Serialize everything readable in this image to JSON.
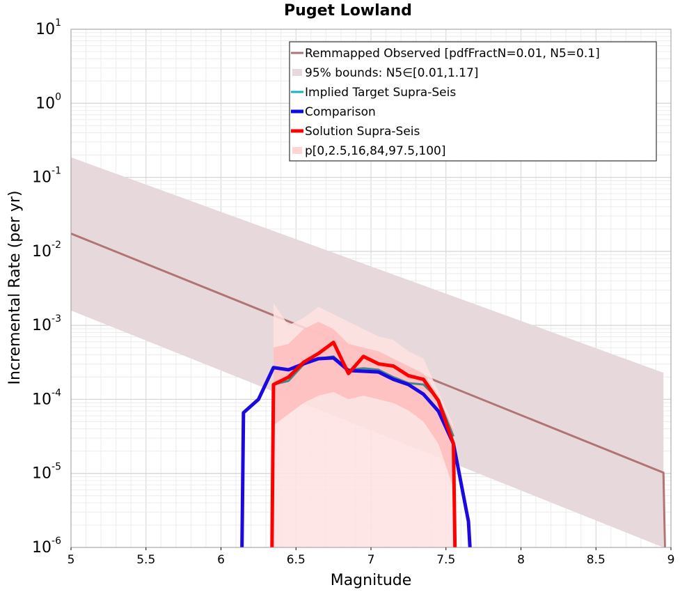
{
  "chart_data": {
    "type": "line",
    "title": "Puget Lowland",
    "xlabel": "Magnitude",
    "ylabel": "Incremental Rate (per yr)",
    "xlim": [
      5,
      9
    ],
    "ylim_log10": [
      -6,
      1
    ],
    "y_scale": "log",
    "grid": true,
    "legend_position": "top-right",
    "x_ticks": [
      5,
      5.5,
      6,
      6.5,
      7,
      7.5,
      8,
      8.5,
      9
    ],
    "x_tick_labels": [
      "5",
      "5.5",
      "6",
      "6.5",
      "7",
      "7.5",
      "8",
      "8.5",
      "9"
    ],
    "y_ticks": [
      {
        "base": "10",
        "exp": "1",
        "value": 1
      },
      {
        "base": "10",
        "exp": "0",
        "value": 0
      },
      {
        "base": "10",
        "exp": "-1",
        "value": -1
      },
      {
        "base": "10",
        "exp": "-2",
        "value": -2
      },
      {
        "base": "10",
        "exp": "-3",
        "value": -3
      },
      {
        "base": "10",
        "exp": "-4",
        "value": -4
      },
      {
        "base": "10",
        "exp": "-5",
        "value": -5
      },
      {
        "base": "10",
        "exp": "-6",
        "value": -6
      }
    ],
    "legend": [
      {
        "label": "Remmapped Observed [pdfFractN=0.01, N5=0.1]",
        "color": "#b07474",
        "style": "line"
      },
      {
        "label": "95% bounds: N5∈[0.01,1.17]",
        "color": "#e7d9db",
        "style": "patch"
      },
      {
        "label": "Implied Target Supra-Seis",
        "color": "#17b3bf",
        "style": "line"
      },
      {
        "label": "Comparison",
        "color": "#0a0ae6",
        "style": "thick-line"
      },
      {
        "label": "Solution Supra-Seis",
        "color": "#ff0000",
        "style": "thick-line"
      },
      {
        "label": "p[0,2.5,16,84,97.5,100]",
        "color": "#ffd4d4",
        "style": "patch"
      }
    ],
    "series": [
      {
        "name": "95% bounds: N5∈[0.01,1.17]",
        "kind": "band",
        "color": "#e7d9db",
        "x": [
          5.0,
          8.95,
          8.95
        ],
        "upper_log10": [
          -0.73,
          -3.64,
          -6.0
        ],
        "lower_log10": [
          -2.8,
          -6.0,
          -6.0
        ]
      },
      {
        "name": "Remmapped Observed [pdfFractN=0.01, N5=0.1]",
        "kind": "line",
        "color": "#b07474",
        "x": [
          5.0,
          8.95,
          8.96
        ],
        "y_log10": [
          -1.76,
          -4.99,
          -6.0
        ]
      },
      {
        "name": "p[0,2.5,16,84,97.5,100] (outer)",
        "kind": "band",
        "color": "#ffe2e2",
        "x": [
          6.35,
          6.45,
          6.55,
          6.65,
          6.75,
          6.85,
          6.95,
          7.05,
          7.15,
          7.25,
          7.35,
          7.45,
          7.55
        ],
        "upper_log10": [
          -2.7,
          -3.0,
          -2.9,
          -2.75,
          -2.85,
          -2.95,
          -3.05,
          -3.15,
          -3.2,
          -3.35,
          -3.45,
          -3.9,
          -4.35
        ],
        "lower_log10": [
          -6.0,
          -6.0,
          -6.0,
          -6.0,
          -6.0,
          -6.0,
          -6.0,
          -6.0,
          -6.0,
          -6.0,
          -6.0,
          -6.0,
          -6.0
        ]
      },
      {
        "name": "p[0,2.5,16,84,97.5,100] (inner)",
        "kind": "band",
        "color": "#ffbcbc",
        "x": [
          6.35,
          6.45,
          6.55,
          6.65,
          6.75,
          6.85,
          6.95,
          7.05,
          7.15,
          7.25,
          7.35,
          7.45,
          7.55
        ],
        "upper_log10": [
          -3.3,
          -3.25,
          -3.05,
          -2.95,
          -3.05,
          -3.25,
          -3.3,
          -3.35,
          -3.45,
          -3.55,
          -3.65,
          -3.95,
          -4.4
        ],
        "lower_log10": [
          -4.35,
          -4.2,
          -4.05,
          -3.95,
          -3.9,
          -4.0,
          -3.95,
          -4.0,
          -4.05,
          -4.15,
          -4.3,
          -4.6,
          -5.2
        ]
      },
      {
        "name": "Implied Target Supra-Seis",
        "kind": "line",
        "color": "#3e8a8a",
        "x": [
          6.35,
          6.45,
          6.55,
          6.65,
          6.75,
          6.85,
          6.95,
          7.05,
          7.15,
          7.25,
          7.35,
          7.45,
          7.55
        ],
        "y_log10": [
          -3.8,
          -3.75,
          -3.53,
          -3.45,
          -3.42,
          -3.6,
          -3.58,
          -3.6,
          -3.7,
          -3.78,
          -3.8,
          -4.0,
          -4.5
        ]
      },
      {
        "name": "Comparison",
        "kind": "line",
        "color": "#1a0ae0",
        "x": [
          6.14,
          6.15,
          6.25,
          6.35,
          6.45,
          6.55,
          6.65,
          6.75,
          6.85,
          6.95,
          7.05,
          7.15,
          7.25,
          7.35,
          7.45,
          7.55,
          7.65,
          7.66
        ],
        "y_log10": [
          -6.0,
          -4.18,
          -4.0,
          -3.57,
          -3.6,
          -3.52,
          -3.45,
          -3.44,
          -3.61,
          -3.62,
          -3.63,
          -3.73,
          -3.8,
          -3.93,
          -4.16,
          -4.6,
          -5.65,
          -6.0
        ]
      },
      {
        "name": "Solution Supra-Seis",
        "kind": "line",
        "color": "#ff0000",
        "x": [
          6.34,
          6.35,
          6.45,
          6.55,
          6.65,
          6.75,
          6.85,
          6.95,
          7.05,
          7.15,
          7.25,
          7.35,
          7.45,
          7.55,
          7.56
        ],
        "y_log10": [
          -6.0,
          -3.8,
          -3.7,
          -3.5,
          -3.38,
          -3.23,
          -3.65,
          -3.42,
          -3.52,
          -3.55,
          -3.68,
          -3.73,
          -4.02,
          -4.6,
          -6.0
        ]
      }
    ]
  }
}
